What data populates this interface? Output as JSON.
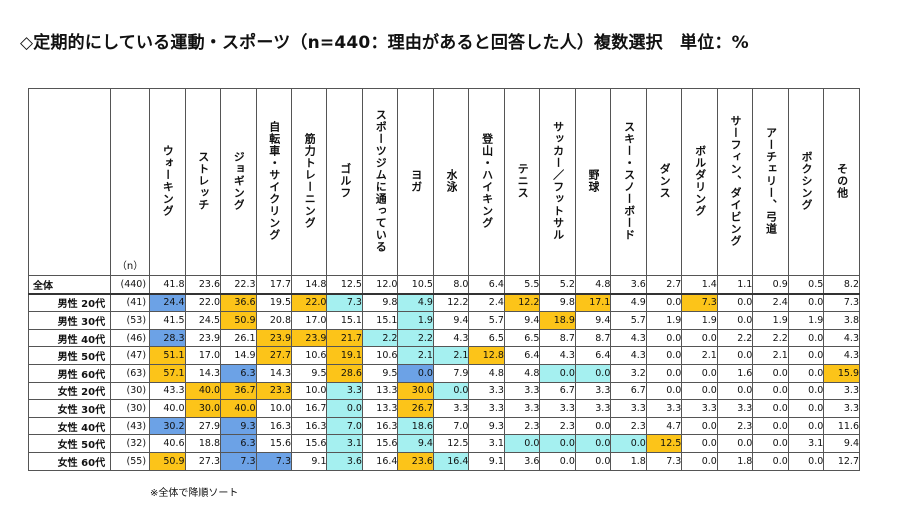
{
  "title": "◇定期的にしている運動・スポーツ（n=440：理由があると回答した人）複数選択　単位：%",
  "footnote": "※全体で降順ソート",
  "n_header": "（n）",
  "colors": {
    "high": "#fcc419",
    "mid": "#a5f0f0",
    "low": "#6ca2e6",
    "none": "#ffffff"
  },
  "chart_data": {
    "type": "table",
    "columns": [
      "ウォーキング",
      "ストレッチ",
      "ジョギング",
      "自転車・サイクリング",
      "筋力トレーニング",
      "ゴルフ",
      "スポーツジムに通っている",
      "ヨガ",
      "水泳",
      "登山・ハイキング",
      "テニス",
      "サッカー／フットサル",
      "野球",
      "スキー・スノーボード",
      "ダンス",
      "ボルダリング",
      "サーフィン、ダイビング",
      "アーチェリー、弓道",
      "ボクシング",
      "その他"
    ],
    "rows": [
      {
        "label": "全体",
        "n": "(440)",
        "values": [
          "41.8",
          "23.6",
          "22.3",
          "17.7",
          "14.8",
          "12.5",
          "12.0",
          "10.5",
          "8.0",
          "6.4",
          "5.5",
          "5.2",
          "4.8",
          "3.6",
          "2.7",
          "1.4",
          "1.1",
          "0.9",
          "0.5",
          "8.2"
        ],
        "colors": [
          "none",
          "none",
          "none",
          "none",
          "none",
          "none",
          "none",
          "none",
          "none",
          "none",
          "none",
          "none",
          "none",
          "none",
          "none",
          "none",
          "none",
          "none",
          "none",
          "none"
        ]
      },
      {
        "label": "男性 20代",
        "n": "(41)",
        "values": [
          "24.4",
          "22.0",
          "36.6",
          "19.5",
          "22.0",
          "7.3",
          "9.8",
          "4.9",
          "12.2",
          "2.4",
          "12.2",
          "9.8",
          "17.1",
          "4.9",
          "0.0",
          "7.3",
          "0.0",
          "2.4",
          "0.0",
          "7.3"
        ],
        "colors": [
          "low",
          "none",
          "high",
          "none",
          "high",
          "mid",
          "none",
          "mid",
          "none",
          "none",
          "high",
          "none",
          "high",
          "none",
          "none",
          "high",
          "none",
          "none",
          "none",
          "none"
        ]
      },
      {
        "label": "男性 30代",
        "n": "(53)",
        "values": [
          "41.5",
          "24.5",
          "50.9",
          "20.8",
          "17.0",
          "15.1",
          "15.1",
          "1.9",
          "9.4",
          "5.7",
          "9.4",
          "18.9",
          "9.4",
          "5.7",
          "1.9",
          "1.9",
          "0.0",
          "1.9",
          "1.9",
          "3.8"
        ],
        "colors": [
          "none",
          "none",
          "high",
          "none",
          "none",
          "none",
          "none",
          "mid",
          "none",
          "none",
          "none",
          "high",
          "none",
          "none",
          "none",
          "none",
          "none",
          "none",
          "none",
          "none"
        ]
      },
      {
        "label": "男性 40代",
        "n": "(46)",
        "values": [
          "28.3",
          "23.9",
          "26.1",
          "23.9",
          "23.9",
          "21.7",
          "2.2",
          "2.2",
          "4.3",
          "6.5",
          "6.5",
          "8.7",
          "8.7",
          "4.3",
          "0.0",
          "0.0",
          "2.2",
          "2.2",
          "0.0",
          "4.3"
        ],
        "colors": [
          "low",
          "none",
          "none",
          "high",
          "high",
          "high",
          "mid",
          "mid",
          "none",
          "none",
          "none",
          "none",
          "none",
          "none",
          "none",
          "none",
          "none",
          "none",
          "none",
          "none"
        ]
      },
      {
        "label": "男性 50代",
        "n": "(47)",
        "values": [
          "51.1",
          "17.0",
          "14.9",
          "27.7",
          "10.6",
          "19.1",
          "10.6",
          "2.1",
          "2.1",
          "12.8",
          "6.4",
          "4.3",
          "6.4",
          "4.3",
          "0.0",
          "2.1",
          "0.0",
          "2.1",
          "0.0",
          "4.3"
        ],
        "colors": [
          "high",
          "none",
          "none",
          "high",
          "none",
          "high",
          "none",
          "mid",
          "mid",
          "high",
          "none",
          "none",
          "none",
          "none",
          "none",
          "none",
          "none",
          "none",
          "none",
          "none"
        ]
      },
      {
        "label": "男性 60代",
        "n": "(63)",
        "values": [
          "57.1",
          "14.3",
          "6.3",
          "14.3",
          "9.5",
          "28.6",
          "9.5",
          "0.0",
          "7.9",
          "4.8",
          "4.8",
          "0.0",
          "0.0",
          "3.2",
          "0.0",
          "0.0",
          "1.6",
          "0.0",
          "0.0",
          "15.9"
        ],
        "colors": [
          "high",
          "none",
          "low",
          "none",
          "none",
          "high",
          "none",
          "low",
          "none",
          "none",
          "none",
          "mid",
          "mid",
          "none",
          "none",
          "none",
          "none",
          "none",
          "none",
          "high"
        ]
      },
      {
        "label": "女性 20代",
        "n": "(30)",
        "values": [
          "43.3",
          "40.0",
          "36.7",
          "23.3",
          "10.0",
          "3.3",
          "13.3",
          "30.0",
          "0.0",
          "3.3",
          "3.3",
          "6.7",
          "3.3",
          "6.7",
          "0.0",
          "0.0",
          "0.0",
          "0.0",
          "0.0",
          "3.3"
        ],
        "colors": [
          "none",
          "high",
          "high",
          "high",
          "none",
          "mid",
          "none",
          "high",
          "mid",
          "none",
          "none",
          "none",
          "none",
          "none",
          "none",
          "none",
          "none",
          "none",
          "none",
          "none"
        ]
      },
      {
        "label": "女性 30代",
        "n": "(30)",
        "values": [
          "40.0",
          "30.0",
          "40.0",
          "10.0",
          "16.7",
          "0.0",
          "13.3",
          "26.7",
          "3.3",
          "3.3",
          "3.3",
          "3.3",
          "3.3",
          "3.3",
          "3.3",
          "3.3",
          "3.3",
          "0.0",
          "0.0",
          "3.3"
        ],
        "colors": [
          "none",
          "high",
          "high",
          "none",
          "none",
          "mid",
          "none",
          "high",
          "none",
          "none",
          "none",
          "none",
          "none",
          "none",
          "none",
          "none",
          "none",
          "none",
          "none",
          "none"
        ]
      },
      {
        "label": "女性 40代",
        "n": "(43)",
        "values": [
          "30.2",
          "27.9",
          "9.3",
          "16.3",
          "16.3",
          "7.0",
          "16.3",
          "18.6",
          "7.0",
          "9.3",
          "2.3",
          "2.3",
          "0.0",
          "2.3",
          "4.7",
          "0.0",
          "2.3",
          "0.0",
          "0.0",
          "11.6"
        ],
        "colors": [
          "low",
          "none",
          "low",
          "none",
          "none",
          "mid",
          "none",
          "mid",
          "none",
          "none",
          "none",
          "none",
          "none",
          "none",
          "none",
          "none",
          "none",
          "none",
          "none",
          "none"
        ]
      },
      {
        "label": "女性 50代",
        "n": "(32)",
        "values": [
          "40.6",
          "18.8",
          "6.3",
          "15.6",
          "15.6",
          "3.1",
          "15.6",
          "9.4",
          "12.5",
          "3.1",
          "0.0",
          "0.0",
          "0.0",
          "0.0",
          "12.5",
          "0.0",
          "0.0",
          "0.0",
          "3.1",
          "9.4"
        ],
        "colors": [
          "none",
          "none",
          "low",
          "none",
          "none",
          "mid",
          "none",
          "mid",
          "none",
          "none",
          "mid",
          "mid",
          "mid",
          "mid",
          "high",
          "none",
          "none",
          "none",
          "none",
          "none"
        ]
      },
      {
        "label": "女性 60代",
        "n": "(55)",
        "values": [
          "50.9",
          "27.3",
          "7.3",
          "7.3",
          "9.1",
          "3.6",
          "16.4",
          "23.6",
          "16.4",
          "9.1",
          "3.6",
          "0.0",
          "0.0",
          "1.8",
          "7.3",
          "0.0",
          "1.8",
          "0.0",
          "0.0",
          "12.7"
        ],
        "colors": [
          "high",
          "none",
          "low",
          "low",
          "none",
          "mid",
          "none",
          "high",
          "mid",
          "none",
          "none",
          "none",
          "none",
          "none",
          "none",
          "none",
          "none",
          "none",
          "none",
          "none"
        ]
      }
    ]
  }
}
